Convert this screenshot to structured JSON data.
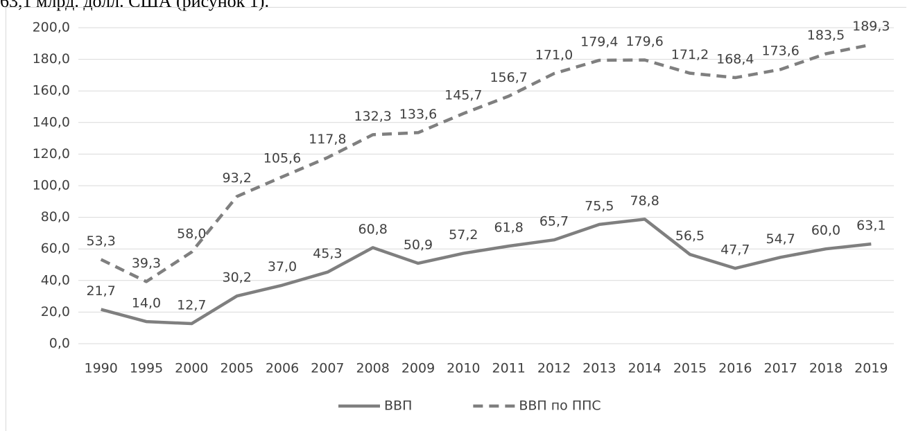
{
  "caption": "63,1 млрд. долл. США (рисунок 1).",
  "chart_data": {
    "type": "line",
    "categories": [
      "1990",
      "1995",
      "2000",
      "2005",
      "2006",
      "2007",
      "2008",
      "2009",
      "2010",
      "2011",
      "2012",
      "2013",
      "2014",
      "2015",
      "2016",
      "2017",
      "2018",
      "2019"
    ],
    "series": [
      {
        "name": "ВВП",
        "color": "#7f7f7f",
        "dash": "solid",
        "values": [
          21.7,
          14.0,
          12.7,
          30.2,
          37.0,
          45.3,
          60.8,
          50.9,
          57.2,
          61.8,
          65.7,
          75.5,
          78.8,
          56.5,
          47.7,
          54.7,
          60.0,
          63.1
        ],
        "value_labels": [
          "21,7",
          "14,0",
          "12,7",
          "30,2",
          "37,0",
          "45,3",
          "60,8",
          "50,9",
          "57,2",
          "61,8",
          "65,7",
          "75,5",
          "78,8",
          "56,5",
          "47,7",
          "54,7",
          "60,0",
          "63,1"
        ]
      },
      {
        "name": "ВВП по ППС",
        "color": "#7f7f7f",
        "dash": "dashed",
        "values": [
          53.3,
          39.3,
          58.0,
          93.2,
          105.6,
          117.8,
          132.3,
          133.6,
          145.7,
          156.7,
          171.0,
          179.4,
          179.6,
          171.2,
          168.4,
          173.6,
          183.5,
          189.3
        ],
        "value_labels": [
          "53,3",
          "39,3",
          "58,0",
          "93,2",
          "105,6",
          "117,8",
          "132,3",
          "133,6",
          "145,7",
          "156,7",
          "171,0",
          "179,4",
          "179,6",
          "171,2",
          "168,4",
          "173,6",
          "183,5",
          "189,3"
        ]
      }
    ],
    "ylim": [
      0,
      200
    ],
    "yticks": [
      {
        "value": 0,
        "label": "0,0"
      },
      {
        "value": 20,
        "label": "20,0"
      },
      {
        "value": 40,
        "label": "40,0"
      },
      {
        "value": 60,
        "label": "60,0"
      },
      {
        "value": 80,
        "label": "80,0"
      },
      {
        "value": 100,
        "label": "100,0"
      },
      {
        "value": 120,
        "label": "120,0"
      },
      {
        "value": 140,
        "label": "140,0"
      },
      {
        "value": 160,
        "label": "160,0"
      },
      {
        "value": 180,
        "label": "180,0"
      },
      {
        "value": 200,
        "label": "200,0"
      }
    ],
    "grid": true,
    "legend": "bottom"
  }
}
